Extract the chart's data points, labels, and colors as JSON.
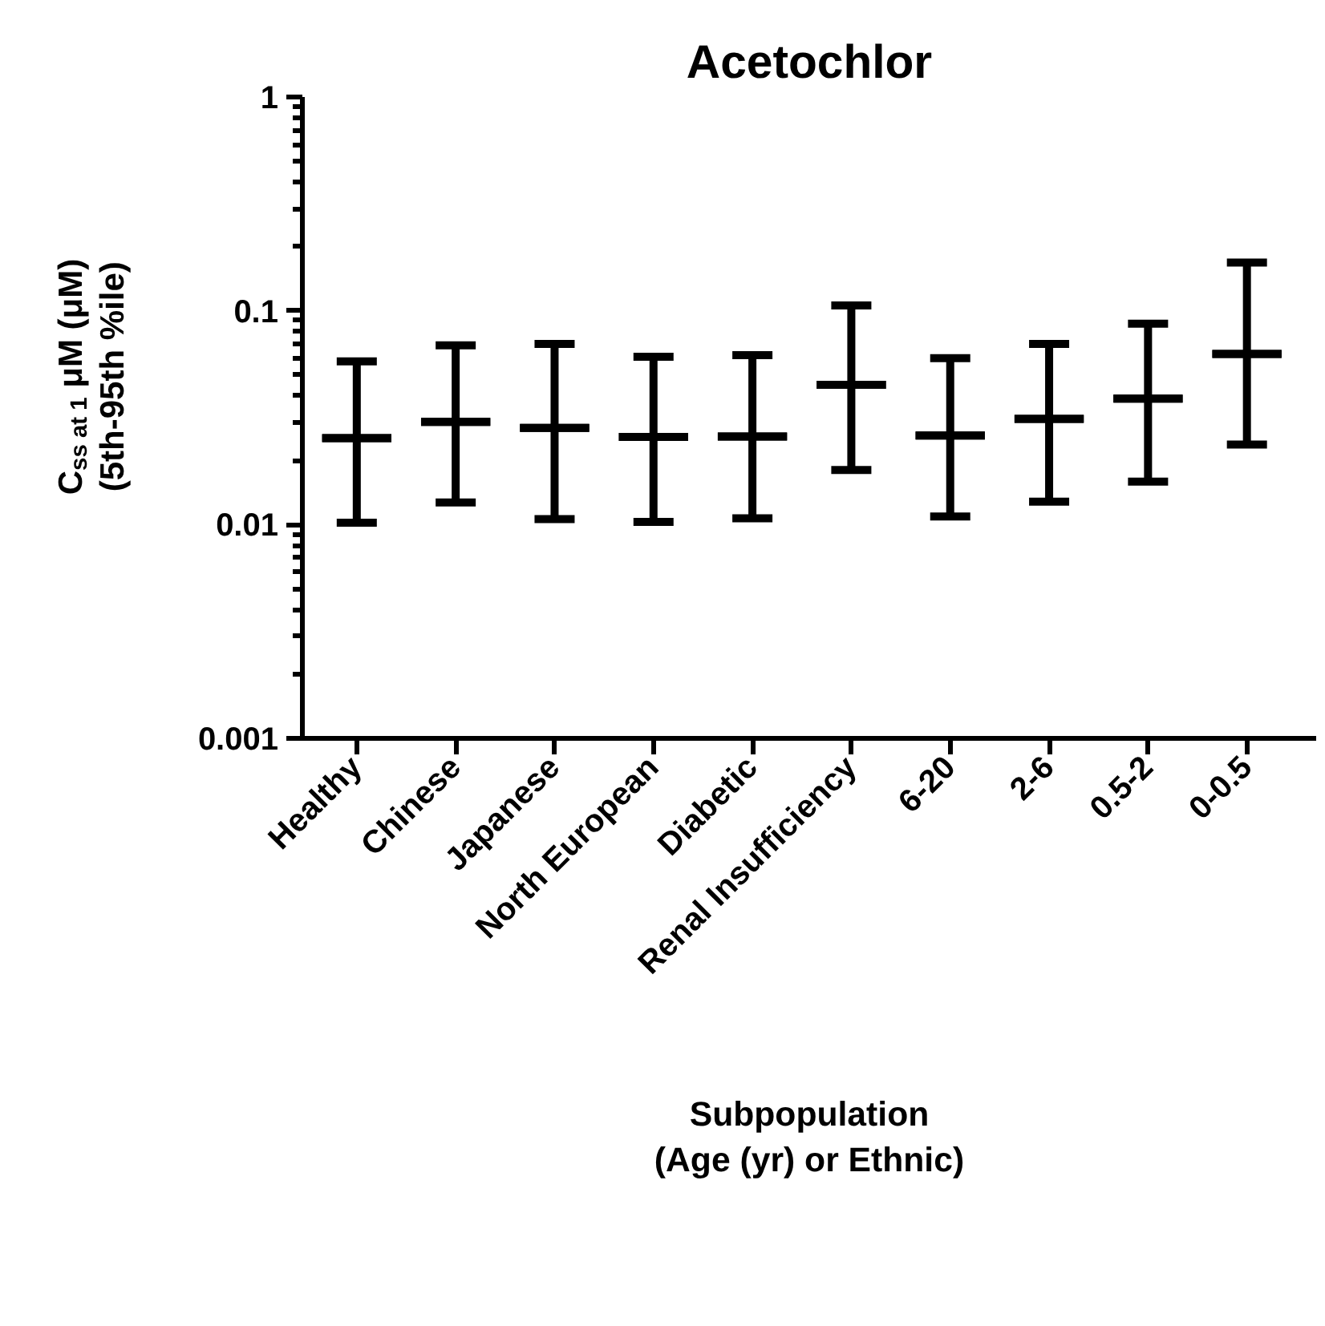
{
  "chart_data": {
    "type": "box",
    "title": "Acetochlor",
    "xlabel": "Subpopulation\n(Age (yr) or Ethnic)",
    "ylabel": "C$_{ss at 1}$ μM  (μM)\n(5th-95th %ile)",
    "categories": [
      "Healthy",
      "Chinese",
      "Japanese",
      "North European",
      "Diabetic",
      "Renal Insufficiency",
      "6-20",
      "2-6",
      "0.5-2",
      "0-0.5"
    ],
    "boxes": [
      {
        "low": 0.0102,
        "q1": 0.0254,
        "median": 0.0254,
        "q3": 0.0254,
        "high": 0.058
      },
      {
        "low": 0.0127,
        "q1": 0.0302,
        "median": 0.0302,
        "q3": 0.0302,
        "high": 0.069
      },
      {
        "low": 0.0106,
        "q1": 0.0283,
        "median": 0.0283,
        "q3": 0.0283,
        "high": 0.07
      },
      {
        "low": 0.0103,
        "q1": 0.0257,
        "median": 0.0257,
        "q3": 0.0257,
        "high": 0.061
      },
      {
        "low": 0.0107,
        "q1": 0.0258,
        "median": 0.0258,
        "q3": 0.0258,
        "high": 0.062
      },
      {
        "low": 0.018,
        "q1": 0.0451,
        "median": 0.0451,
        "q3": 0.0451,
        "high": 0.106
      },
      {
        "low": 0.0109,
        "q1": 0.0261,
        "median": 0.0261,
        "q3": 0.0261,
        "high": 0.06
      },
      {
        "low": 0.0128,
        "q1": 0.0312,
        "median": 0.0312,
        "q3": 0.0312,
        "high": 0.07
      },
      {
        "low": 0.0159,
        "q1": 0.0388,
        "median": 0.0388,
        "q3": 0.0388,
        "high": 0.087
      },
      {
        "low": 0.0237,
        "q1": 0.0628,
        "median": 0.0628,
        "q3": 0.0628,
        "high": 0.168
      }
    ],
    "color": "#000000",
    "log": true,
    "ylim": [
      0.001,
      1
    ],
    "yticks": [
      0.001,
      0.01,
      0.1,
      1
    ],
    "grid": false
  }
}
